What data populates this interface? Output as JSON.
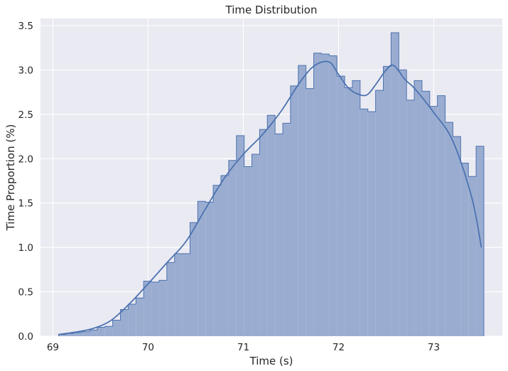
{
  "chart_data": {
    "type": "histogram",
    "title": "Time Distribution",
    "xlabel": "Time (s)",
    "ylabel": "Time Proportion (%)",
    "xlim": [
      68.87,
      73.72
    ],
    "ylim": [
      0,
      3.58
    ],
    "xticks": [
      69,
      70,
      71,
      72,
      73
    ],
    "yticks": [
      0.0,
      0.5,
      1.0,
      1.5,
      2.0,
      2.5,
      3.0,
      3.5
    ],
    "grid": true,
    "bin_start": 69.06,
    "bin_width": 0.0812,
    "values": [
      0.02,
      0.03,
      0.04,
      0.05,
      0.07,
      0.1,
      0.11,
      0.18,
      0.3,
      0.36,
      0.43,
      0.62,
      0.61,
      0.63,
      0.83,
      0.93,
      0.93,
      1.28,
      1.52,
      1.51,
      1.7,
      1.81,
      1.98,
      2.26,
      1.91,
      2.05,
      2.33,
      2.49,
      2.28,
      2.4,
      2.82,
      3.05,
      2.79,
      3.19,
      3.18,
      3.16,
      2.93,
      2.8,
      2.88,
      2.56,
      2.53,
      2.77,
      3.04,
      3.42,
      3.0,
      2.66,
      2.88,
      2.76,
      2.59,
      2.71,
      2.41,
      2.25,
      1.95,
      1.8,
      2.14
    ],
    "kde": {
      "x": [
        69.06,
        69.2,
        69.4,
        69.6,
        69.8,
        70.0,
        70.2,
        70.4,
        70.6,
        70.8,
        71.0,
        71.2,
        71.4,
        71.6,
        71.75,
        71.9,
        72.0,
        72.1,
        72.2,
        72.3,
        72.4,
        72.5,
        72.58,
        72.7,
        72.8,
        73.0,
        73.2,
        73.4,
        73.5
      ],
      "y": [
        0.02,
        0.04,
        0.08,
        0.17,
        0.36,
        0.59,
        0.83,
        1.07,
        1.43,
        1.78,
        2.05,
        2.27,
        2.54,
        2.87,
        3.05,
        3.09,
        2.95,
        2.8,
        2.73,
        2.72,
        2.85,
        3.0,
        3.05,
        2.89,
        2.79,
        2.52,
        2.2,
        1.56,
        1.0
      ]
    },
    "colors": {
      "bar_fill": "#9aadd1",
      "bar_edge": "#4c72b0",
      "kde_line": "#4c72b0",
      "plot_bg": "#eaeaf2",
      "grid": "#ffffff"
    }
  }
}
